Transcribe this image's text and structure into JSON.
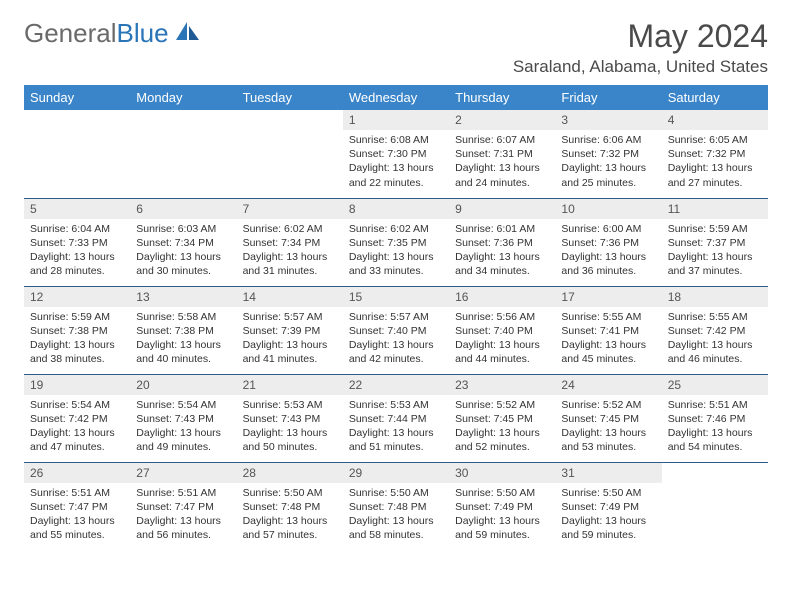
{
  "brand": {
    "part1": "General",
    "part2": "Blue"
  },
  "title": "May 2024",
  "location": "Saraland, Alabama, United States",
  "colors": {
    "header_bg": "#3a85c9",
    "header_text": "#ffffff",
    "daynum_bg": "#ededed",
    "rule": "#2f5a8a",
    "logo_grey": "#6a6a6a",
    "logo_blue": "#2a74b8"
  },
  "weekdays": [
    "Sunday",
    "Monday",
    "Tuesday",
    "Wednesday",
    "Thursday",
    "Friday",
    "Saturday"
  ],
  "weeks": [
    [
      {
        "empty": true
      },
      {
        "empty": true
      },
      {
        "empty": true
      },
      {
        "day": "1",
        "sunrise": "Sunrise: 6:08 AM",
        "sunset": "Sunset: 7:30 PM",
        "daylight": "Daylight: 13 hours and 22 minutes."
      },
      {
        "day": "2",
        "sunrise": "Sunrise: 6:07 AM",
        "sunset": "Sunset: 7:31 PM",
        "daylight": "Daylight: 13 hours and 24 minutes."
      },
      {
        "day": "3",
        "sunrise": "Sunrise: 6:06 AM",
        "sunset": "Sunset: 7:32 PM",
        "daylight": "Daylight: 13 hours and 25 minutes."
      },
      {
        "day": "4",
        "sunrise": "Sunrise: 6:05 AM",
        "sunset": "Sunset: 7:32 PM",
        "daylight": "Daylight: 13 hours and 27 minutes."
      }
    ],
    [
      {
        "day": "5",
        "sunrise": "Sunrise: 6:04 AM",
        "sunset": "Sunset: 7:33 PM",
        "daylight": "Daylight: 13 hours and 28 minutes."
      },
      {
        "day": "6",
        "sunrise": "Sunrise: 6:03 AM",
        "sunset": "Sunset: 7:34 PM",
        "daylight": "Daylight: 13 hours and 30 minutes."
      },
      {
        "day": "7",
        "sunrise": "Sunrise: 6:02 AM",
        "sunset": "Sunset: 7:34 PM",
        "daylight": "Daylight: 13 hours and 31 minutes."
      },
      {
        "day": "8",
        "sunrise": "Sunrise: 6:02 AM",
        "sunset": "Sunset: 7:35 PM",
        "daylight": "Daylight: 13 hours and 33 minutes."
      },
      {
        "day": "9",
        "sunrise": "Sunrise: 6:01 AM",
        "sunset": "Sunset: 7:36 PM",
        "daylight": "Daylight: 13 hours and 34 minutes."
      },
      {
        "day": "10",
        "sunrise": "Sunrise: 6:00 AM",
        "sunset": "Sunset: 7:36 PM",
        "daylight": "Daylight: 13 hours and 36 minutes."
      },
      {
        "day": "11",
        "sunrise": "Sunrise: 5:59 AM",
        "sunset": "Sunset: 7:37 PM",
        "daylight": "Daylight: 13 hours and 37 minutes."
      }
    ],
    [
      {
        "day": "12",
        "sunrise": "Sunrise: 5:59 AM",
        "sunset": "Sunset: 7:38 PM",
        "daylight": "Daylight: 13 hours and 38 minutes."
      },
      {
        "day": "13",
        "sunrise": "Sunrise: 5:58 AM",
        "sunset": "Sunset: 7:38 PM",
        "daylight": "Daylight: 13 hours and 40 minutes."
      },
      {
        "day": "14",
        "sunrise": "Sunrise: 5:57 AM",
        "sunset": "Sunset: 7:39 PM",
        "daylight": "Daylight: 13 hours and 41 minutes."
      },
      {
        "day": "15",
        "sunrise": "Sunrise: 5:57 AM",
        "sunset": "Sunset: 7:40 PM",
        "daylight": "Daylight: 13 hours and 42 minutes."
      },
      {
        "day": "16",
        "sunrise": "Sunrise: 5:56 AM",
        "sunset": "Sunset: 7:40 PM",
        "daylight": "Daylight: 13 hours and 44 minutes."
      },
      {
        "day": "17",
        "sunrise": "Sunrise: 5:55 AM",
        "sunset": "Sunset: 7:41 PM",
        "daylight": "Daylight: 13 hours and 45 minutes."
      },
      {
        "day": "18",
        "sunrise": "Sunrise: 5:55 AM",
        "sunset": "Sunset: 7:42 PM",
        "daylight": "Daylight: 13 hours and 46 minutes."
      }
    ],
    [
      {
        "day": "19",
        "sunrise": "Sunrise: 5:54 AM",
        "sunset": "Sunset: 7:42 PM",
        "daylight": "Daylight: 13 hours and 47 minutes."
      },
      {
        "day": "20",
        "sunrise": "Sunrise: 5:54 AM",
        "sunset": "Sunset: 7:43 PM",
        "daylight": "Daylight: 13 hours and 49 minutes."
      },
      {
        "day": "21",
        "sunrise": "Sunrise: 5:53 AM",
        "sunset": "Sunset: 7:43 PM",
        "daylight": "Daylight: 13 hours and 50 minutes."
      },
      {
        "day": "22",
        "sunrise": "Sunrise: 5:53 AM",
        "sunset": "Sunset: 7:44 PM",
        "daylight": "Daylight: 13 hours and 51 minutes."
      },
      {
        "day": "23",
        "sunrise": "Sunrise: 5:52 AM",
        "sunset": "Sunset: 7:45 PM",
        "daylight": "Daylight: 13 hours and 52 minutes."
      },
      {
        "day": "24",
        "sunrise": "Sunrise: 5:52 AM",
        "sunset": "Sunset: 7:45 PM",
        "daylight": "Daylight: 13 hours and 53 minutes."
      },
      {
        "day": "25",
        "sunrise": "Sunrise: 5:51 AM",
        "sunset": "Sunset: 7:46 PM",
        "daylight": "Daylight: 13 hours and 54 minutes."
      }
    ],
    [
      {
        "day": "26",
        "sunrise": "Sunrise: 5:51 AM",
        "sunset": "Sunset: 7:47 PM",
        "daylight": "Daylight: 13 hours and 55 minutes."
      },
      {
        "day": "27",
        "sunrise": "Sunrise: 5:51 AM",
        "sunset": "Sunset: 7:47 PM",
        "daylight": "Daylight: 13 hours and 56 minutes."
      },
      {
        "day": "28",
        "sunrise": "Sunrise: 5:50 AM",
        "sunset": "Sunset: 7:48 PM",
        "daylight": "Daylight: 13 hours and 57 minutes."
      },
      {
        "day": "29",
        "sunrise": "Sunrise: 5:50 AM",
        "sunset": "Sunset: 7:48 PM",
        "daylight": "Daylight: 13 hours and 58 minutes."
      },
      {
        "day": "30",
        "sunrise": "Sunrise: 5:50 AM",
        "sunset": "Sunset: 7:49 PM",
        "daylight": "Daylight: 13 hours and 59 minutes."
      },
      {
        "day": "31",
        "sunrise": "Sunrise: 5:50 AM",
        "sunset": "Sunset: 7:49 PM",
        "daylight": "Daylight: 13 hours and 59 minutes."
      },
      {
        "empty": true
      }
    ]
  ]
}
